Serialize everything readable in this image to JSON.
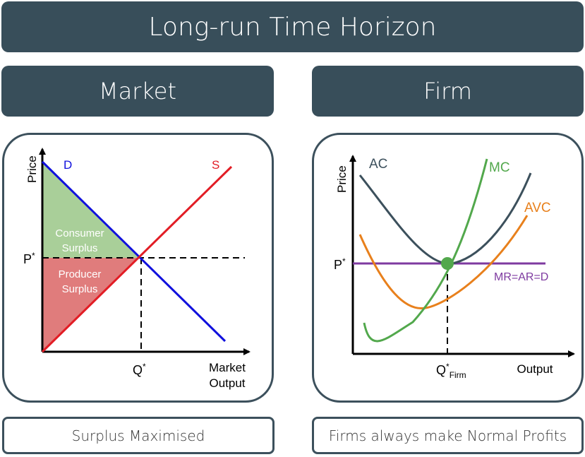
{
  "title": "Long-run Time Horizon",
  "market": {
    "heading": "Market",
    "caption": "Surplus Maximised"
  },
  "firm": {
    "heading": "Firm",
    "caption": "Firms always make Normal Profits"
  },
  "colors": {
    "banner": "#384e5a",
    "demand": "#1010dd",
    "supply": "#e21d25",
    "consumer_surplus": "#a9cf99",
    "producer_surplus": "#e07c7c",
    "ac": "#3c505c",
    "mc": "#52a84c",
    "avc": "#e8801c",
    "mr": "#7e3aa0"
  },
  "chart_data": [
    {
      "type": "line",
      "ylabel": "Price",
      "xlabel": "Market Output",
      "series": [
        {
          "name": "D",
          "points": [
            [
              0,
              10
            ],
            [
              10,
              0
            ]
          ]
        },
        {
          "name": "S",
          "points": [
            [
              0,
              0
            ],
            [
              10,
              10
            ]
          ]
        }
      ],
      "equilibrium": {
        "price_label": "P",
        "quantity_label": "Q",
        "superscript": "*"
      },
      "regions": [
        {
          "label_line1": "Consumer",
          "label_line2": "Surplus"
        },
        {
          "label_line1": "Producer",
          "label_line2": "Surplus"
        }
      ]
    },
    {
      "type": "line",
      "ylabel": "Price",
      "xlabel": "Output",
      "series": [
        {
          "name": "AC"
        },
        {
          "name": "MC"
        },
        {
          "name": "AVC"
        },
        {
          "name": "MR=AR=D"
        }
      ],
      "equilibrium": {
        "price_label": "P",
        "quantity_label": "Q",
        "quantity_subscript": "Firm",
        "superscript": "*"
      }
    }
  ]
}
